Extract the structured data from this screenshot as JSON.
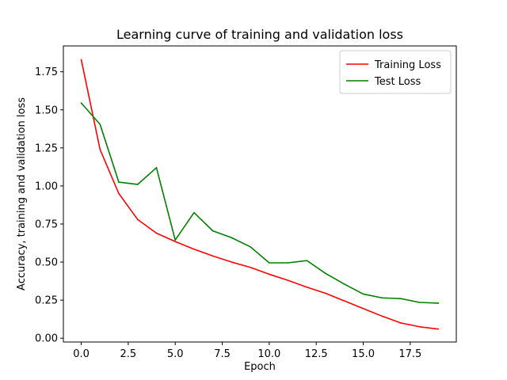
{
  "chart_data": {
    "type": "line",
    "title": "Learning curve of training and validation loss",
    "xlabel": "Epoch",
    "ylabel": "Accuracy, training and validation loss",
    "xlim": [
      -0.95,
      19.95
    ],
    "ylim": [
      -0.025,
      1.92
    ],
    "xticks": [
      0,
      2.5,
      5,
      7.5,
      10,
      12.5,
      15,
      17.5
    ],
    "xtick_labels": [
      "0.0",
      "2.5",
      "5.0",
      "7.5",
      "10.0",
      "12.5",
      "15.0",
      "17.5"
    ],
    "yticks": [
      0,
      0.25,
      0.5,
      0.75,
      1.0,
      1.25,
      1.5,
      1.75
    ],
    "ytick_labels": [
      "0.00",
      "0.25",
      "0.50",
      "0.75",
      "1.00",
      "1.25",
      "1.50",
      "1.75"
    ],
    "grid": false,
    "legend_position": "top-right",
    "x": [
      0,
      1,
      2,
      3,
      4,
      5,
      6,
      7,
      8,
      9,
      10,
      11,
      12,
      13,
      14,
      15,
      16,
      17,
      18,
      19
    ],
    "series": [
      {
        "name": "Training Loss",
        "color": "#ff0000",
        "values": [
          1.83,
          1.24,
          0.95,
          0.78,
          0.69,
          0.635,
          0.585,
          0.54,
          0.5,
          0.465,
          0.42,
          0.38,
          0.335,
          0.295,
          0.245,
          0.195,
          0.145,
          0.1,
          0.075,
          0.06
        ]
      },
      {
        "name": "Test Loss",
        "color": "#008000",
        "values": [
          1.545,
          1.405,
          1.025,
          1.01,
          1.12,
          0.645,
          0.825,
          0.705,
          0.66,
          0.6,
          0.495,
          0.495,
          0.51,
          0.425,
          0.355,
          0.29,
          0.265,
          0.26,
          0.235,
          0.23
        ]
      }
    ]
  }
}
